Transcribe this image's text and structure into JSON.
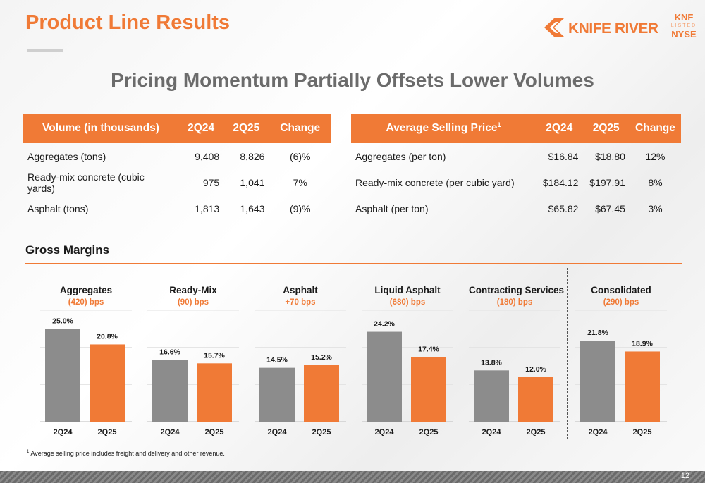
{
  "header": {
    "title": "Product Line Results",
    "subtitle": "Pricing Momentum Partially Offsets Lower Volumes"
  },
  "logo": {
    "brand": "KNIFE RIVER",
    "ticker": "KNF",
    "listed": "LISTED",
    "exchange": "NYSE",
    "color": "#f07a36"
  },
  "volume_table": {
    "headers": [
      "Volume (in thousands)",
      "2Q24",
      "2Q25",
      "Change"
    ],
    "rows": [
      [
        "Aggregates (tons)",
        "9,408",
        "8,826",
        "(6)%"
      ],
      [
        "Ready-mix concrete (cubic yards)",
        "975",
        "1,041",
        "7%"
      ],
      [
        "Asphalt (tons)",
        "1,813",
        "1,643",
        "(9)%"
      ]
    ]
  },
  "price_table": {
    "header_main": "Average Selling Price",
    "header_sup": "1",
    "headers": [
      "2Q24",
      "2Q25",
      "Change"
    ],
    "rows": [
      [
        "Aggregates (per ton)",
        "$16.84",
        "$18.80",
        "12%"
      ],
      [
        "Ready-mix concrete (per cubic yard)",
        "$184.12",
        "$197.91",
        "8%"
      ],
      [
        "Asphalt (per ton)",
        "$65.82",
        "$67.45",
        "3%"
      ]
    ]
  },
  "gross_margins": {
    "title": "Gross Margins"
  },
  "chart_data": [
    {
      "type": "bar",
      "title": "Aggregates",
      "subtitle": "(420) bps",
      "categories": [
        "2Q24",
        "2Q25"
      ],
      "values": [
        25.0,
        20.8
      ],
      "labels": [
        "25.0%",
        "20.8%"
      ],
      "ylim": [
        0,
        30
      ],
      "colors": [
        "#8c8c8c",
        "#f07a36"
      ]
    },
    {
      "type": "bar",
      "title": "Ready-Mix",
      "subtitle": "(90) bps",
      "categories": [
        "2Q24",
        "2Q25"
      ],
      "values": [
        16.6,
        15.7
      ],
      "labels": [
        "16.6%",
        "15.7%"
      ],
      "ylim": [
        0,
        30
      ],
      "colors": [
        "#8c8c8c",
        "#f07a36"
      ]
    },
    {
      "type": "bar",
      "title": "Asphalt",
      "subtitle": "+70 bps",
      "categories": [
        "2Q24",
        "2Q25"
      ],
      "values": [
        14.5,
        15.2
      ],
      "labels": [
        "14.5%",
        "15.2%"
      ],
      "ylim": [
        0,
        30
      ],
      "colors": [
        "#8c8c8c",
        "#f07a36"
      ]
    },
    {
      "type": "bar",
      "title": "Liquid Asphalt",
      "subtitle": "(680) bps",
      "categories": [
        "2Q24",
        "2Q25"
      ],
      "values": [
        24.2,
        17.4
      ],
      "labels": [
        "24.2%",
        "17.4%"
      ],
      "ylim": [
        0,
        30
      ],
      "colors": [
        "#8c8c8c",
        "#f07a36"
      ]
    },
    {
      "type": "bar",
      "title": "Contracting Services",
      "subtitle": "(180) bps",
      "categories": [
        "2Q24",
        "2Q25"
      ],
      "values": [
        13.8,
        12.0
      ],
      "labels": [
        "13.8%",
        "12.0%"
      ],
      "ylim": [
        0,
        30
      ],
      "colors": [
        "#8c8c8c",
        "#f07a36"
      ]
    },
    {
      "type": "bar",
      "title": "Consolidated",
      "subtitle": "(290) bps",
      "categories": [
        "2Q24",
        "2Q25"
      ],
      "values": [
        21.8,
        18.9
      ],
      "labels": [
        "21.8%",
        "18.9%"
      ],
      "ylim": [
        0,
        30
      ],
      "colors": [
        "#8c8c8c",
        "#f07a36"
      ]
    }
  ],
  "footnote": {
    "sup": "1",
    "text": "Average selling price includes freight and delivery and other revenue."
  },
  "page_number": "12"
}
